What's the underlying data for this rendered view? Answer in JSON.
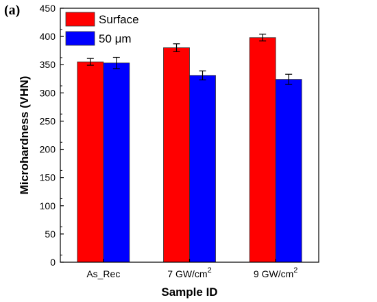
{
  "panel_label": "(a)",
  "chart_data": {
    "type": "bar",
    "categories": [
      "As_Rec",
      "7 GW/cm",
      "9 GW/cm"
    ],
    "category_superscripts": [
      "",
      "2",
      "2"
    ],
    "series": [
      {
        "name": "Surface",
        "values": [
          355,
          380,
          398
        ],
        "errors": [
          6,
          7,
          6
        ],
        "color": "#ff0000"
      },
      {
        "name": "50 μm",
        "values": [
          353,
          331,
          324
        ],
        "errors": [
          10,
          8,
          9
        ],
        "color": "#0000ff"
      }
    ],
    "xlabel": "Sample ID",
    "ylabel": "Microhardness (VHN)",
    "ylim": [
      0,
      450
    ],
    "yticks": [
      0,
      50,
      100,
      150,
      200,
      250,
      300,
      350,
      400,
      450
    ],
    "legend_position": "top-left",
    "grid": false
  }
}
